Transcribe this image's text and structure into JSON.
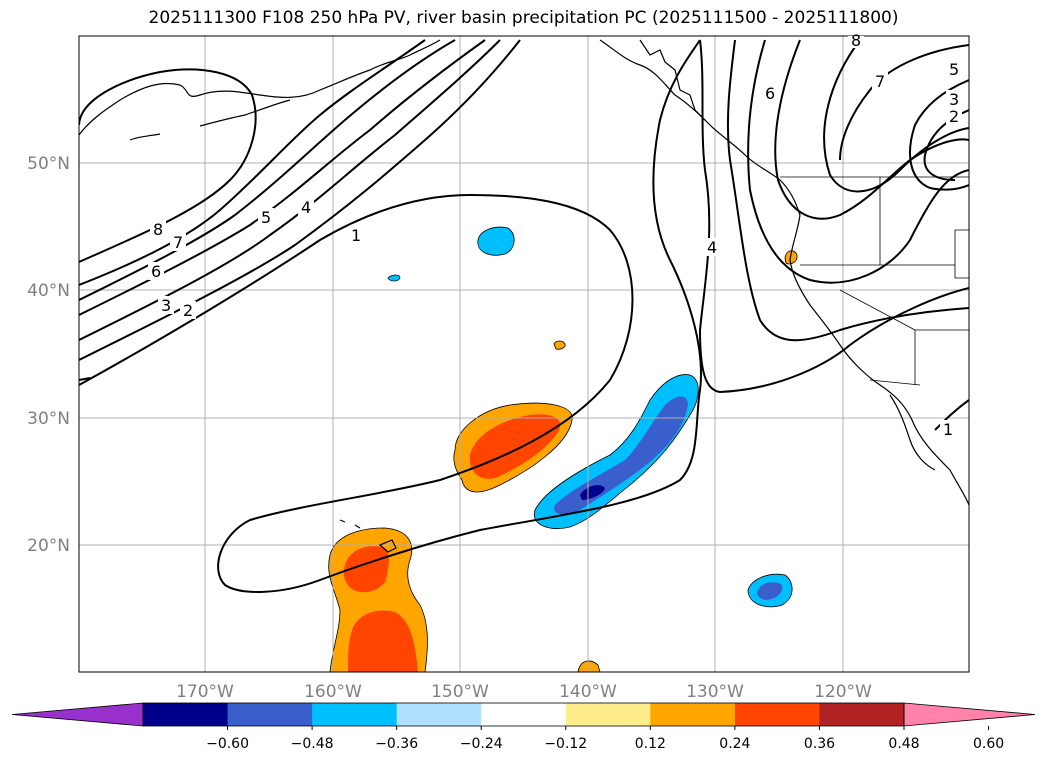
{
  "title": "2025111300 F108 250 hPa PV, river basin precipitation PC (2025111500 - 2025111800)",
  "lat_labels": [
    "50°N",
    "40°N",
    "30°N",
    "20°N"
  ],
  "lon_labels": [
    "170°W",
    "160°W",
    "150°W",
    "140°W",
    "130°W",
    "120°W"
  ],
  "colorbar": {
    "colors": [
      "#9932CC",
      "#00008B",
      "#3A5FCD",
      "#00BFFF",
      "#B0E2FF",
      "#FFFFFF",
      "#FFEC8B",
      "#FFA500",
      "#FF4500",
      "#B22222",
      "#FF82AB"
    ],
    "ticks": [
      "−0.60",
      "−0.48",
      "−0.36",
      "−0.24",
      "−0.12",
      "0.12",
      "0.24",
      "0.36",
      "0.48",
      "0.60"
    ]
  },
  "contour_labels": [
    "8",
    "7",
    "6",
    "5",
    "4",
    "3",
    "2",
    "1",
    "1",
    "4",
    "6",
    "7",
    "5",
    "3",
    "2",
    "8",
    "1"
  ]
}
